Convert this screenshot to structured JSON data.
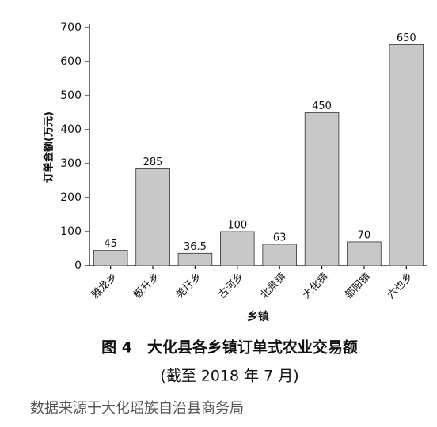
{
  "chart_data": {
    "type": "bar",
    "title": "图 4　大化县各乡镇订单式农业交易额",
    "subtitle": "(截至 2018 年 7 月)",
    "source": "数据来源于大化瑶族自治县商务局",
    "x_label": "乡镇",
    "y_label": "订单金额(万元)",
    "categories": [
      "雅龙乡",
      "板升乡",
      "羌圩乡",
      "古河乡",
      "北景镇",
      "大化镇",
      "都阳镇",
      "六也乡"
    ],
    "values": [
      45,
      285,
      36.5,
      100,
      63,
      450,
      70,
      650
    ],
    "color": "#c8c8c8",
    "ylim": [
      0,
      700
    ],
    "yticks": [
      0,
      100,
      200,
      300,
      400,
      500,
      600,
      700
    ],
    "grid": false
  }
}
